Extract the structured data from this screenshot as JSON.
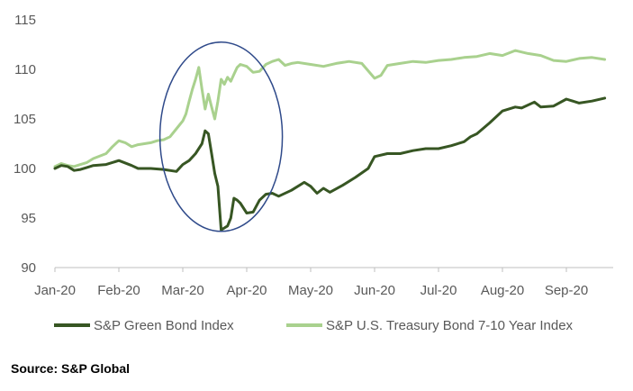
{
  "chart_data": {
    "type": "line",
    "title": "",
    "xlabel": "",
    "ylabel": "",
    "ylim": [
      90,
      115
    ],
    "yticks": [
      90,
      95,
      100,
      105,
      110,
      115
    ],
    "grid": false,
    "legend_position": "bottom",
    "x_tick_labels": [
      "Jan-20",
      "Feb-20",
      "Mar-20",
      "Apr-20",
      "May-20",
      "Jun-20",
      "Jul-20",
      "Aug-20",
      "Sep-20"
    ],
    "x_tick_months": [
      0,
      1,
      2,
      3,
      4,
      5,
      6,
      7,
      8
    ],
    "xlim_months": [
      0,
      8.6
    ],
    "annotation": {
      "type": "ellipse",
      "x_center_month": 2.6,
      "y_center": 103.2,
      "color": "#2f4a8a"
    },
    "series": [
      {
        "name": "S&P Green Bond Index",
        "color": "#375623",
        "x_months": [
          0,
          0.1,
          0.2,
          0.3,
          0.4,
          0.5,
          0.6,
          0.8,
          1.0,
          1.2,
          1.3,
          1.5,
          1.7,
          1.9,
          2.0,
          2.1,
          2.2,
          2.3,
          2.35,
          2.4,
          2.45,
          2.5,
          2.55,
          2.6,
          2.65,
          2.7,
          2.75,
          2.8,
          2.85,
          2.9,
          3.0,
          3.1,
          3.2,
          3.3,
          3.4,
          3.5,
          3.7,
          3.9,
          4.0,
          4.1,
          4.2,
          4.3,
          4.5,
          4.7,
          4.9,
          5.0,
          5.2,
          5.4,
          5.6,
          5.8,
          6.0,
          6.2,
          6.4,
          6.5,
          6.6,
          6.8,
          7.0,
          7.2,
          7.3,
          7.5,
          7.6,
          7.8,
          8.0,
          8.2,
          8.4,
          8.6
        ],
        "values": [
          100.0,
          100.3,
          100.2,
          99.8,
          99.9,
          100.1,
          100.3,
          100.4,
          100.8,
          100.3,
          100.0,
          100.0,
          99.9,
          99.7,
          100.4,
          100.8,
          101.5,
          102.5,
          103.8,
          103.5,
          101.5,
          99.5,
          98.2,
          93.8,
          94.0,
          94.2,
          95.0,
          97.0,
          96.8,
          96.5,
          95.5,
          95.6,
          96.8,
          97.4,
          97.5,
          97.2,
          97.8,
          98.6,
          98.2,
          97.5,
          98.0,
          97.6,
          98.3,
          99.1,
          100.0,
          101.2,
          101.5,
          101.5,
          101.8,
          102.0,
          102.0,
          102.3,
          102.7,
          103.2,
          103.5,
          104.6,
          105.8,
          106.2,
          106.1,
          106.7,
          106.2,
          106.3,
          107.0,
          106.6,
          106.8,
          107.1
        ]
      },
      {
        "name": "S&P U.S. Treasury Bond 7-10 Year Index",
        "color": "#a9d18e",
        "x_months": [
          0,
          0.1,
          0.2,
          0.3,
          0.4,
          0.5,
          0.6,
          0.8,
          0.9,
          1.0,
          1.1,
          1.2,
          1.3,
          1.4,
          1.5,
          1.6,
          1.7,
          1.8,
          1.9,
          2.0,
          2.05,
          2.1,
          2.15,
          2.2,
          2.25,
          2.3,
          2.35,
          2.4,
          2.45,
          2.5,
          2.55,
          2.6,
          2.65,
          2.7,
          2.75,
          2.8,
          2.85,
          2.9,
          3.0,
          3.1,
          3.2,
          3.3,
          3.4,
          3.5,
          3.6,
          3.7,
          3.8,
          4.0,
          4.2,
          4.4,
          4.6,
          4.8,
          5.0,
          5.1,
          5.2,
          5.4,
          5.6,
          5.8,
          6.0,
          6.2,
          6.4,
          6.6,
          6.8,
          7.0,
          7.2,
          7.4,
          7.6,
          7.8,
          8.0,
          8.2,
          8.4,
          8.6
        ],
        "values": [
          100.2,
          100.5,
          100.3,
          100.2,
          100.4,
          100.6,
          101.0,
          101.5,
          102.2,
          102.8,
          102.6,
          102.2,
          102.4,
          102.5,
          102.6,
          102.8,
          102.9,
          103.2,
          104.0,
          104.8,
          105.5,
          106.8,
          108.0,
          109.0,
          110.2,
          108.0,
          106.0,
          107.5,
          106.2,
          105.0,
          106.8,
          109.0,
          108.5,
          109.2,
          108.8,
          109.5,
          110.2,
          110.5,
          110.3,
          109.7,
          109.8,
          110.5,
          110.8,
          111.0,
          110.4,
          110.6,
          110.7,
          110.5,
          110.3,
          110.6,
          110.8,
          110.6,
          109.1,
          109.4,
          110.4,
          110.6,
          110.8,
          110.7,
          110.9,
          111.0,
          111.2,
          111.3,
          111.6,
          111.4,
          111.9,
          111.6,
          111.4,
          110.9,
          110.8,
          111.1,
          111.2,
          111.0
        ]
      }
    ]
  },
  "source": "Source: S&P Global"
}
